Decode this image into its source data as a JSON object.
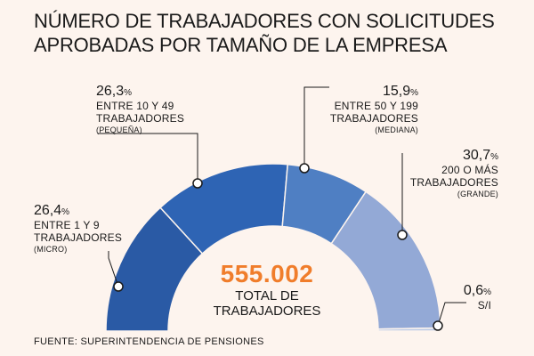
{
  "title": {
    "line1": "NÚMERO DE TRABAJADORES CON SOLICITUDES",
    "line2": "APROBADAS POR TAMAÑO DE LA EMPRESA"
  },
  "total": {
    "value": "555.002",
    "label_line1": "TOTAL DE",
    "label_line2": "TRABAJADORES"
  },
  "source": "FUENTE: SUPERINTENDENCIA DE PENSIONES",
  "colors": {
    "micro": "#2a5aa5",
    "pequena": "#2e64b4",
    "mediana": "#4f7fc3",
    "grande": "#93a9d6",
    "si": "#bccbe6",
    "accent": "#f07d2b",
    "background": "#fdf4ee"
  },
  "chart_data": {
    "type": "pie",
    "variant": "semicircle-donut",
    "categories": [
      "MICRO",
      "PEQUEÑA",
      "MEDIANA",
      "GRANDE",
      "S/I"
    ],
    "values": [
      26.4,
      26.3,
      15.9,
      30.7,
      0.6
    ],
    "unit": "%",
    "labels": [
      {
        "pct": "26,4",
        "line1": "ENTRE 1 Y 9",
        "line2": "TRABAJADORES",
        "size": "(MICRO)"
      },
      {
        "pct": "26,3",
        "line1": "ENTRE 10 Y 49",
        "line2": "TRABAJADORES",
        "size": "(PEQUEÑA)"
      },
      {
        "pct": "15,9",
        "line1": "ENTRE 50 Y 199",
        "line2": "TRABAJADORES",
        "size": "(MEDIANA)"
      },
      {
        "pct": "30,7",
        "line1": "200 O MÁS",
        "line2": "TRABAJADORES",
        "size": "(GRANDE)"
      },
      {
        "pct": "0,6",
        "line1": "S/I",
        "line2": "",
        "size": ""
      }
    ],
    "total": 555002
  }
}
